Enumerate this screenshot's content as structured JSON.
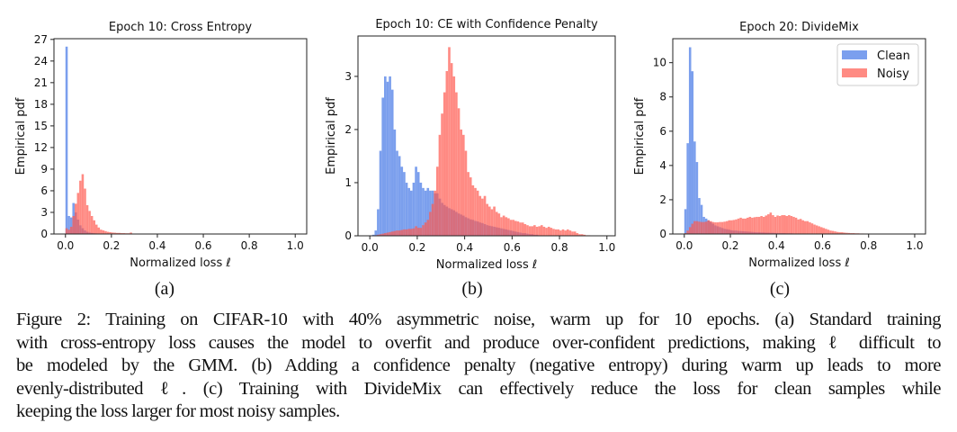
{
  "chart_data": [
    {
      "type": "bar",
      "title": "Epoch 10: Cross Entropy",
      "xlabel": "Normalized loss ℓ",
      "ylabel": "Empirical pdf",
      "xlim": [
        -0.05,
        1.05
      ],
      "ylim": [
        0,
        27.1
      ],
      "xticks": [
        "0.0",
        "0.2",
        "0.4",
        "0.6",
        "0.8",
        "1.0"
      ],
      "yticks": [
        "0",
        "3",
        "6",
        "9",
        "12",
        "15",
        "18",
        "21",
        "24",
        "27"
      ],
      "bin_start": 0,
      "bin_width": 0.01,
      "series": [
        {
          "values": [
            26,
            2.5,
            2.3,
            4.3,
            3.0,
            2.0,
            1.2,
            0.8,
            0.5,
            0.3,
            0.2,
            0.15,
            0.1,
            0.08,
            0.06,
            0.05,
            0.04,
            0.03,
            0.02,
            0.02,
            0.01,
            0.01,
            0.01,
            0.01,
            0.01,
            0.01,
            0.01,
            0.01,
            0.01,
            0.01
          ],
          "color": "#4f7fe8"
        },
        {
          "values": [
            0.8,
            0.6,
            1.0,
            2.5,
            4.2,
            5.7,
            7.4,
            8.3,
            6.3,
            4.0,
            3.2,
            2.5,
            1.9,
            1.3,
            0.9,
            0.6,
            0.5,
            0.4,
            0.3,
            0.25,
            0.2,
            0.18,
            0.15,
            0.15,
            0.12,
            0.12,
            0.1,
            0.1,
            0.2,
            0.05,
            0.04,
            0.04,
            0.03,
            0.03,
            0.03,
            0.03,
            0.03,
            0.03,
            0.03,
            0.03,
            0.03,
            0.03,
            0.03,
            0.03,
            0.03,
            0.03,
            0.03,
            0.03,
            0.03,
            0.03,
            0.03,
            0.03,
            0.03,
            0.03,
            0.03,
            0.03,
            0.03,
            0.03,
            0.03,
            0.03,
            0.03,
            0.03,
            0.03,
            0.03,
            0.03,
            0.03,
            0.03,
            0.03,
            0.03,
            0.03,
            0.03,
            0.03,
            0.03,
            0.03,
            0.03,
            0.03,
            0.03,
            0.03,
            0.03,
            0.03,
            0.03,
            0.03,
            0.03,
            0.03,
            0.03,
            0.03,
            0.03,
            0.03,
            0.03,
            0.03,
            0.03,
            0.03,
            0.03,
            0.03,
            0.03,
            0.03,
            0.03,
            0.03,
            0.03,
            0.03
          ],
          "color": "#ff5a4f"
        }
      ]
    },
    {
      "type": "bar",
      "title": "Epoch 10: CE with Confidence Penalty",
      "xlabel": "Normalized loss ℓ",
      "ylabel": "Empirical pdf",
      "xlim": [
        -0.05,
        1.035
      ],
      "ylim": [
        0,
        3.76
      ],
      "xticks": [
        "0.0",
        "0.2",
        "0.4",
        "0.6",
        "0.8",
        "1.0"
      ],
      "yticks": [
        "0",
        "1",
        "2",
        "3"
      ],
      "bin_start": 0,
      "bin_width": 0.01,
      "series": [
        {
          "values": [
            0,
            0.02,
            0.1,
            0.5,
            1.6,
            2.6,
            3.0,
            2.9,
            3.0,
            2.75,
            2.0,
            1.6,
            1.5,
            1.3,
            1.2,
            1.0,
            0.9,
            0.85,
            1.0,
            1.3,
            1.2,
            1.0,
            0.9,
            0.85,
            0.9,
            0.85,
            0.85,
            0.8,
            0.8,
            0.7,
            0.62,
            0.58,
            0.55,
            0.52,
            0.5,
            0.48,
            0.45,
            0.42,
            0.4,
            0.38,
            0.35,
            0.33,
            0.31,
            0.3,
            0.28,
            0.27,
            0.25,
            0.24,
            0.22,
            0.2,
            0.19,
            0.18,
            0.17,
            0.16,
            0.15,
            0.14,
            0.13,
            0.12,
            0.11,
            0.1,
            0.09,
            0.08,
            0.07,
            0.06,
            0.05,
            0.05,
            0.04,
            0.03,
            0.03,
            0.02,
            0.02
          ],
          "color": "#4f7fe8"
        },
        {
          "values": [
            0,
            0,
            0.01,
            0.02,
            0.03,
            0.04,
            0.05,
            0.06,
            0.07,
            0.08,
            0.09,
            0.1,
            0.1,
            0.11,
            0.12,
            0.12,
            0.13,
            0.13,
            0.14,
            0.18,
            0.15,
            0.15,
            0.2,
            0.25,
            0.3,
            0.45,
            0.6,
            0.85,
            1.3,
            1.9,
            2.3,
            2.7,
            3.1,
            3.55,
            3.25,
            3.0,
            2.7,
            2.4,
            2.0,
            1.9,
            1.6,
            1.2,
            1.1,
            0.95,
            0.9,
            0.85,
            0.75,
            0.7,
            0.75,
            0.6,
            0.55,
            0.5,
            0.55,
            0.45,
            0.42,
            0.35,
            0.38,
            0.35,
            0.33,
            0.3,
            0.3,
            0.28,
            0.27,
            0.25,
            0.25,
            0.22,
            0.2,
            0.18,
            0.18,
            0.2,
            0.17,
            0.18,
            0.2,
            0.17,
            0.15,
            0.17,
            0.15,
            0.13,
            0.12,
            0.12,
            0.1,
            0.12,
            0.1,
            0.12,
            0.1,
            0.08,
            0.08,
            0.05,
            0.03,
            0.03,
            0.02,
            0.01,
            0.01,
            0.005
          ],
          "color": "#ff5a4f"
        }
      ]
    },
    {
      "type": "bar",
      "title": "Epoch 20: DivideMix",
      "xlabel": "Normalized loss ℓ",
      "ylabel": "Empirical pdf",
      "xlim": [
        -0.05,
        1.047
      ],
      "ylim": [
        0,
        11.4
      ],
      "xticks": [
        "0.0",
        "0.2",
        "0.4",
        "0.6",
        "0.8",
        "1.0"
      ],
      "yticks": [
        "0",
        "2",
        "4",
        "6",
        "8",
        "10"
      ],
      "legend": {
        "position": "top-right",
        "entries": [
          "Clean",
          "Noisy"
        ]
      },
      "bin_start": 0,
      "bin_width": 0.01,
      "series": [
        {
          "name": "Clean",
          "values": [
            1.45,
            5.3,
            10.9,
            9.5,
            5.4,
            4.2,
            2.1,
            1.7,
            1.0,
            0.9,
            0.8,
            0.7,
            0.6,
            0.5,
            0.45,
            0.4,
            0.35,
            0.3,
            0.28,
            0.25,
            0.22,
            0.2,
            0.2,
            0.18,
            0.17,
            0.16,
            0.15,
            0.14,
            0.13,
            0.12,
            0.11,
            0.1,
            0.1,
            0.09,
            0.09,
            0.08,
            0.08,
            0.07,
            0.07,
            0.06,
            0.06,
            0.05,
            0.05,
            0.05,
            0.04,
            0.04,
            0.04,
            0.03,
            0.03,
            0.03,
            0.02,
            0.02,
            0.02,
            0.02,
            0.01,
            0.01,
            0.01,
            0.01,
            0.01,
            0.01
          ],
          "color": "#4f7fe8"
        },
        {
          "name": "Noisy",
          "values": [
            0.05,
            0.2,
            0.4,
            0.6,
            0.75,
            0.75,
            0.72,
            0.7,
            0.7,
            0.72,
            0.8,
            0.75,
            0.7,
            0.68,
            0.68,
            0.7,
            0.7,
            0.72,
            0.75,
            0.8,
            0.8,
            0.82,
            0.85,
            0.9,
            0.95,
            0.9,
            0.9,
            0.95,
            1.0,
            0.95,
            0.98,
            1.0,
            1.0,
            1.05,
            1.0,
            1.08,
            1.15,
            1.25,
            1.1,
            1.0,
            1.08,
            1.05,
            1.1,
            1.1,
            1.05,
            1.1,
            1.05,
            1.0,
            0.95,
            0.85,
            0.88,
            0.8,
            0.75,
            0.75,
            0.68,
            0.62,
            0.55,
            0.5,
            0.45,
            0.4,
            0.35,
            0.3,
            0.25,
            0.2,
            0.18,
            0.15,
            0.12,
            0.1,
            0.1,
            0.08,
            0.07,
            0.06,
            0.05,
            0.05,
            0.04,
            0.04,
            0.03,
            0.03,
            0.02,
            0.02,
            0.02,
            0.02,
            0.01,
            0.01,
            0.01,
            0.01,
            0.01,
            0.01,
            0.01,
            0.01,
            0.01,
            0.01,
            0.01,
            0.01,
            0.01,
            0.01,
            0.01,
            0.01
          ],
          "color": "#ff5a4f"
        }
      ]
    }
  ],
  "subfigure_labels": [
    "(a)",
    "(b)",
    "(c)"
  ],
  "caption": {
    "lines": [
      "Figure 2: Training on CIFAR-10 with 40% asymmetric noise, warm up for 10 epochs. (a) Standard training",
      "with cross-entropy loss causes the model to overfit and produce over-confident predictions, making ℓ difficult to",
      "be modeled by the GMM. (b) Adding a confidence penalty (negative entropy) during warm up leads to more",
      "evenly-distributed ℓ.  (c) Training with DivideMix can effectively reduce the loss for clean samples while",
      "keeping the loss larger for most noisy samples."
    ]
  }
}
